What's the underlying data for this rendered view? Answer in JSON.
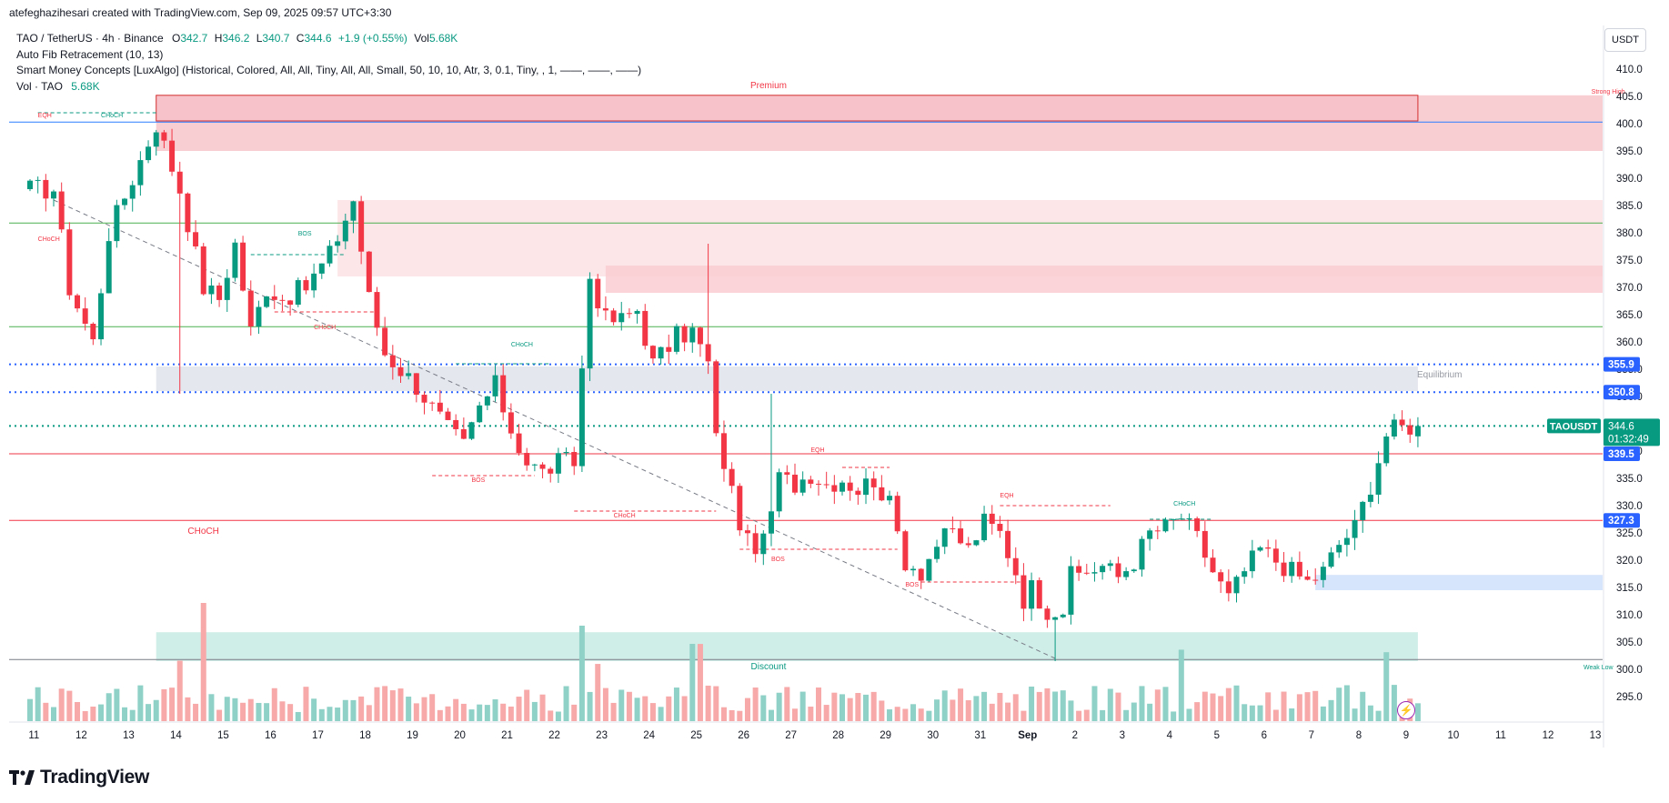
{
  "credit": "atefeghazihesari created with TradingView.com, Sep 09, 2025 09:57 UTC+3:30",
  "legend": {
    "symbol": "TAO / TetherUS · 4h · Binance",
    "o_label": "O",
    "o_value": "342.7",
    "h_label": "H",
    "h_value": "346.2",
    "l_label": "L",
    "l_value": "340.7",
    "c_label": "C",
    "c_value": "344.6",
    "change": "+1.9 (+0.55%)",
    "vol_label": "Vol",
    "vol_value": "5.68K",
    "indicator1": "Auto Fib Retracement (10, 13)",
    "indicator2": "Smart Money Concepts [LuxAlgo] (Historical, Colored, All, All, Tiny, All, All, Small, 50, 10, 10, Atr, 3, 0.1, Tiny, , 1, ——, ——, ——)",
    "vol_row_label": "Vol · TAO",
    "vol_row_value": "5.68K"
  },
  "unit": "USDT",
  "footer": {
    "brand": "TradingView"
  },
  "colors": {
    "up": "#089981",
    "down": "#f23645",
    "up_vol": "#8fd1c7",
    "down_vol": "#f7a9a9",
    "premium": "#f2a3ab",
    "discount": "#b2dfd7",
    "equilibrium": "#d1d4dc",
    "demand": "#bbd3f7",
    "blue_line": "#2962ff",
    "green_line": "#4caf50",
    "red_line": "#f23645"
  },
  "chart_data": {
    "type": "candlestick",
    "title": "TAO / TetherUS · 4h · Binance",
    "ylim": [
      290.5,
      413
    ],
    "y_ticks": [
      295.0,
      300.0,
      305.0,
      310.0,
      315.0,
      320.0,
      325.0,
      330.0,
      335.0,
      340.0,
      345.0,
      350.0,
      355.0,
      360.0,
      365.0,
      370.0,
      375.0,
      380.0,
      385.0,
      390.0,
      395.0,
      400.0,
      405.0,
      410.0
    ],
    "x_labels": [
      {
        "t": 0.5,
        "label": "11"
      },
      {
        "t": 6.5,
        "label": "12"
      },
      {
        "t": 12.5,
        "label": "13"
      },
      {
        "t": 18.5,
        "label": "14"
      },
      {
        "t": 24.5,
        "label": "15"
      },
      {
        "t": 30.5,
        "label": "16"
      },
      {
        "t": 36.5,
        "label": "17"
      },
      {
        "t": 42.5,
        "label": "18"
      },
      {
        "t": 48.5,
        "label": "19"
      },
      {
        "t": 54.5,
        "label": "20"
      },
      {
        "t": 60.5,
        "label": "21"
      },
      {
        "t": 66.5,
        "label": "22"
      },
      {
        "t": 72.5,
        "label": "23"
      },
      {
        "t": 78.5,
        "label": "24"
      },
      {
        "t": 84.5,
        "label": "25"
      },
      {
        "t": 90.5,
        "label": "26"
      },
      {
        "t": 96.5,
        "label": "27"
      },
      {
        "t": 102.5,
        "label": "28"
      },
      {
        "t": 108.5,
        "label": "29"
      },
      {
        "t": 114.5,
        "label": "30"
      },
      {
        "t": 120.5,
        "label": "31"
      },
      {
        "t": 126.5,
        "label": "Sep",
        "bold": true
      },
      {
        "t": 132.5,
        "label": "2"
      },
      {
        "t": 138.5,
        "label": "3"
      },
      {
        "t": 144.5,
        "label": "4"
      },
      {
        "t": 150.5,
        "label": "5"
      },
      {
        "t": 156.5,
        "label": "6"
      },
      {
        "t": 162.5,
        "label": "7"
      },
      {
        "t": 168.5,
        "label": "8"
      },
      {
        "t": 174.5,
        "label": "9"
      },
      {
        "t": 180.5,
        "label": "10"
      },
      {
        "t": 186.5,
        "label": "11"
      },
      {
        "t": 192.5,
        "label": "12"
      },
      {
        "t": 198.5,
        "label": "13"
      }
    ],
    "anchors": [
      [
        0,
        388
      ],
      [
        4,
        388
      ],
      [
        6,
        370
      ],
      [
        9,
        360
      ],
      [
        11,
        380
      ],
      [
        14,
        390
      ],
      [
        17,
        400
      ],
      [
        20,
        388
      ],
      [
        23,
        370
      ],
      [
        25,
        368
      ],
      [
        27,
        378
      ],
      [
        29,
        362
      ],
      [
        31,
        370
      ],
      [
        33,
        368
      ],
      [
        36,
        370
      ],
      [
        39,
        376
      ],
      [
        42,
        386
      ],
      [
        44,
        368
      ],
      [
        46,
        358
      ],
      [
        48,
        355
      ],
      [
        50,
        352
      ],
      [
        54,
        344
      ],
      [
        56,
        341
      ],
      [
        58,
        348
      ],
      [
        60,
        352
      ],
      [
        62,
        344
      ],
      [
        64,
        338
      ],
      [
        66,
        336
      ],
      [
        68,
        338
      ],
      [
        70,
        338
      ],
      [
        72,
        372
      ],
      [
        74,
        364
      ],
      [
        76,
        364
      ],
      [
        78,
        366
      ],
      [
        80,
        356
      ],
      [
        83,
        361
      ],
      [
        85,
        362
      ],
      [
        87,
        356
      ],
      [
        88,
        342
      ],
      [
        89,
        338
      ],
      [
        91,
        327
      ],
      [
        92,
        323
      ],
      [
        94,
        323
      ],
      [
        96,
        335
      ],
      [
        98,
        334
      ],
      [
        100,
        336
      ],
      [
        102,
        334
      ],
      [
        104,
        335
      ],
      [
        106,
        333
      ],
      [
        108,
        335
      ],
      [
        110,
        330
      ],
      [
        112,
        320
      ],
      [
        114,
        318
      ],
      [
        116,
        323
      ],
      [
        118,
        325
      ],
      [
        120,
        322
      ],
      [
        122,
        327
      ],
      [
        124,
        325
      ],
      [
        126,
        318
      ],
      [
        127,
        313
      ],
      [
        128,
        315
      ],
      [
        130,
        311
      ],
      [
        132,
        311
      ],
      [
        133,
        317
      ],
      [
        135,
        318
      ],
      [
        137,
        319
      ],
      [
        139,
        317
      ],
      [
        141,
        320
      ],
      [
        143,
        325
      ],
      [
        145,
        326
      ],
      [
        147,
        328
      ],
      [
        149,
        324
      ],
      [
        151,
        318
      ],
      [
        153,
        313
      ],
      [
        155,
        318
      ],
      [
        157,
        322
      ],
      [
        159,
        320
      ],
      [
        161,
        318
      ],
      [
        163,
        316
      ],
      [
        165,
        318
      ],
      [
        167,
        323
      ],
      [
        169,
        326
      ],
      [
        171,
        334
      ],
      [
        173,
        343
      ],
      [
        174,
        344
      ],
      [
        176,
        344.6
      ]
    ],
    "last_candle": {
      "open": 342.7,
      "high": 346.2,
      "low": 340.7,
      "close": 344.6
    },
    "price_labels": [
      {
        "value": 355.9,
        "text": "355.9",
        "kind": "blue"
      },
      {
        "value": 350.8,
        "text": "350.8",
        "kind": "blue"
      },
      {
        "value": 344.6,
        "text": "344.6",
        "kind": "current"
      },
      {
        "value": 339.5,
        "text": "339.5",
        "kind": "blue"
      },
      {
        "value": 327.3,
        "text": "327.3",
        "kind": "blue"
      }
    ],
    "symbol_tag": "TAOUSDT",
    "countdown": "01:32:49",
    "zones": [
      {
        "name": "premium",
        "label": "Premium",
        "t0": 16,
        "t1": 176,
        "y0": 400.5,
        "y1": 405.2,
        "color": "#f2a3ab"
      },
      {
        "name": "premium-wide",
        "label": "",
        "t0": 16,
        "t1": 200,
        "y0": 395,
        "y1": 405.2,
        "color": "#f7c6cb"
      },
      {
        "name": "supply-block",
        "label": "",
        "t0": 39,
        "t1": 200,
        "y0": 372,
        "y1": 386,
        "color": "#fde2e4"
      },
      {
        "name": "supply-block-2",
        "label": "",
        "t0": 73,
        "t1": 200,
        "y0": 369,
        "y1": 374,
        "color": "#f9cdd1"
      },
      {
        "name": "equilibrium",
        "label": "Equilibrium",
        "t0": 16,
        "t1": 176,
        "y0": 351,
        "y1": 355.5,
        "color": "#e0e3eb"
      },
      {
        "name": "demand",
        "label": "",
        "t0": 163,
        "t1": 200,
        "y0": 314.5,
        "y1": 317.3,
        "color": "#cfe0fb"
      },
      {
        "name": "discount",
        "label": "Discount",
        "t0": 16,
        "t1": 176,
        "y0": 301.5,
        "y1": 306.8,
        "color": "#c8ebe4"
      }
    ],
    "h_lines": [
      {
        "value": 400.3,
        "color": "#2a7fff",
        "style": "solid"
      },
      {
        "value": 381.8,
        "color": "#4caf50",
        "style": "solid"
      },
      {
        "value": 362.8,
        "color": "#4caf50",
        "style": "solid"
      },
      {
        "value": 355.9,
        "color": "#2962ff",
        "style": "dotted"
      },
      {
        "value": 350.8,
        "color": "#2962ff",
        "style": "dotted"
      },
      {
        "value": 344.6,
        "color": "#089981",
        "style": "dotted"
      },
      {
        "value": 339.5,
        "color": "#f23645",
        "style": "solid"
      },
      {
        "value": 327.3,
        "color": "#f23645",
        "style": "solid"
      },
      {
        "value": 301.8,
        "color": "#787b86",
        "style": "solid"
      }
    ],
    "smc_labels": [
      {
        "t": 1,
        "value": 401.2,
        "text": "EQH",
        "color": "#f23645"
      },
      {
        "t": 9,
        "value": 401.2,
        "text": "CHoCH",
        "color": "#089981"
      },
      {
        "t": 1,
        "value": 378.5,
        "text": "CHoCH",
        "color": "#f23645"
      },
      {
        "t": 34,
        "value": 379.5,
        "text": "BOS",
        "color": "#089981"
      },
      {
        "t": 36,
        "value": 362.3,
        "text": "CHoCH",
        "color": "#f23645"
      },
      {
        "t": 61,
        "value": 359.2,
        "text": "CHoCH",
        "color": "#089981"
      },
      {
        "t": 56,
        "value": 334.3,
        "text": "BOS",
        "color": "#f23645"
      },
      {
        "t": 74,
        "value": 327.8,
        "text": "CHoCH",
        "color": "#f23645"
      },
      {
        "t": 99,
        "value": 339.8,
        "text": "EQH",
        "color": "#f23645"
      },
      {
        "t": 94,
        "value": 319.8,
        "text": "BOS",
        "color": "#f23645"
      },
      {
        "t": 111,
        "value": 315.2,
        "text": "BOS",
        "color": "#f23645"
      },
      {
        "t": 123,
        "value": 331.5,
        "text": "EQH",
        "color": "#f23645"
      },
      {
        "t": 145,
        "value": 330.0,
        "text": "CHoCH",
        "color": "#089981"
      },
      {
        "t": 20,
        "value": 324.8,
        "text": "CHoCH",
        "color": "#f23645",
        "large": true
      },
      {
        "t": 198,
        "value": 405.5,
        "text": "Strong High",
        "color": "#f23645"
      },
      {
        "t": 197,
        "value": 300.0,
        "text": "Weak Low",
        "color": "#089981"
      }
    ]
  }
}
